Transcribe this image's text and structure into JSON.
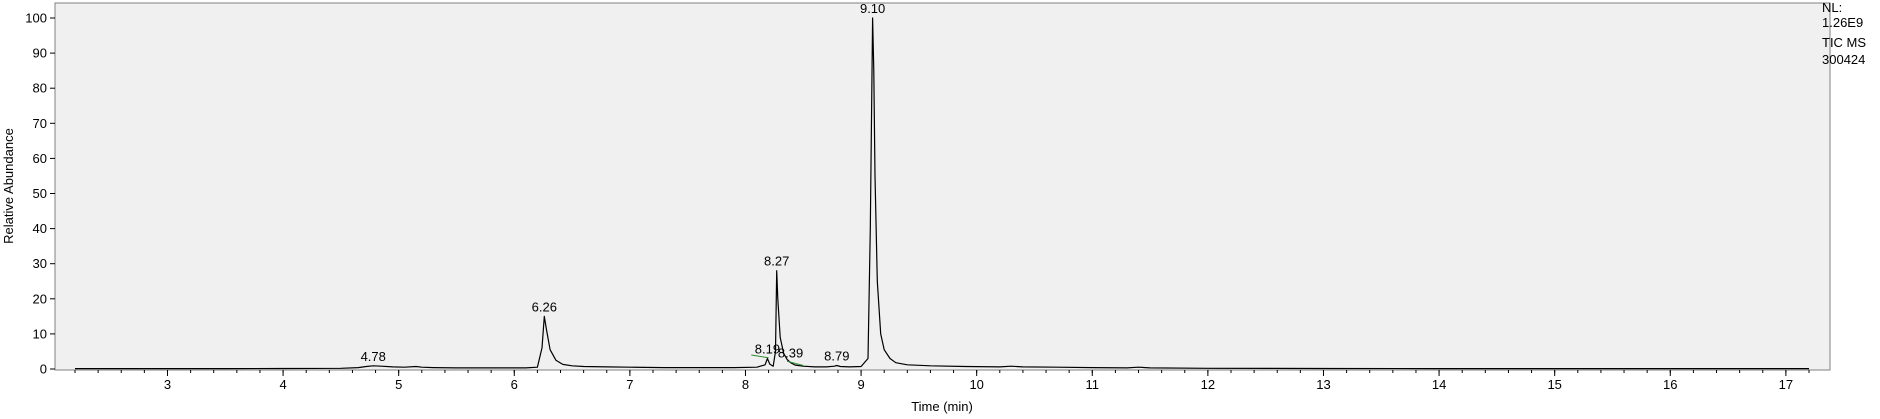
{
  "info": {
    "nl_label": "NL:",
    "nl_value": "1.26E9",
    "scan_filter": "TIC  MS",
    "sample_name": "300424"
  },
  "chart_data": {
    "type": "line",
    "xlabel": "Time (min)",
    "ylabel": "Relative Abundance",
    "xlim": [
      2.2,
      17.2
    ],
    "ylim": [
      0,
      100
    ],
    "x_ticks": [
      3,
      4,
      5,
      6,
      7,
      8,
      9,
      10,
      11,
      12,
      13,
      14,
      15,
      16,
      17
    ],
    "y_ticks": [
      0,
      10,
      20,
      30,
      40,
      50,
      60,
      70,
      80,
      90,
      100
    ],
    "grid": false,
    "background": "#f0f0f0",
    "line_color": "#000000",
    "marker_color": "#2e8b2e",
    "series": [
      {
        "x": [
          2.2,
          2.5,
          3.0,
          3.5,
          4.0,
          4.5,
          4.65,
          4.72,
          4.78,
          4.85,
          4.95,
          5.05,
          5.15,
          5.2,
          5.3,
          5.5,
          5.8,
          6.1,
          6.2,
          6.24,
          6.26,
          6.28,
          6.31,
          6.36,
          6.42,
          6.5,
          6.6,
          6.8,
          7.0,
          7.3,
          7.6,
          7.9,
          8.1,
          8.17,
          8.19,
          8.21,
          8.24,
          8.26,
          8.27,
          8.28,
          8.3,
          8.33,
          8.36,
          8.39,
          8.43,
          8.5,
          8.6,
          8.7,
          8.77,
          8.79,
          8.82,
          8.9,
          9.0,
          9.06,
          9.08,
          9.1,
          9.11,
          9.12,
          9.14,
          9.17,
          9.2,
          9.25,
          9.3,
          9.4,
          9.6,
          9.9,
          10.2,
          10.3,
          10.4,
          10.7,
          11.0,
          11.3,
          11.4,
          11.5,
          12.0,
          13.0,
          14.0,
          15.0,
          16.0,
          17.0,
          17.2
        ],
        "y": [
          0.1,
          0.1,
          0.1,
          0.1,
          0.15,
          0.2,
          0.4,
          0.7,
          0.9,
          0.8,
          0.6,
          0.5,
          0.7,
          0.5,
          0.4,
          0.3,
          0.3,
          0.3,
          0.5,
          6.0,
          15.0,
          11.0,
          5.5,
          2.5,
          1.3,
          0.9,
          0.7,
          0.6,
          0.5,
          0.4,
          0.4,
          0.4,
          0.5,
          1.2,
          3.0,
          1.4,
          0.8,
          5.0,
          28.0,
          20.0,
          9.0,
          4.5,
          2.7,
          1.8,
          1.1,
          0.8,
          0.6,
          0.6,
          0.8,
          1.0,
          0.7,
          0.6,
          0.7,
          3.0,
          40.0,
          100.0,
          85.0,
          55.0,
          25.0,
          10.0,
          5.5,
          3.0,
          1.8,
          1.2,
          0.9,
          0.7,
          0.6,
          0.8,
          0.6,
          0.5,
          0.4,
          0.3,
          0.5,
          0.3,
          0.2,
          0.15,
          0.1,
          0.1,
          0.1,
          0.1,
          0.1
        ]
      }
    ],
    "peak_labels": [
      {
        "text": "4.78",
        "x": 4.78,
        "y": 0.9
      },
      {
        "text": "6.26",
        "x": 6.26,
        "y": 15.0
      },
      {
        "text": "8.19",
        "x": 8.19,
        "y": 3.0
      },
      {
        "text": "8.27",
        "x": 8.27,
        "y": 28.0
      },
      {
        "text": "8.39",
        "x": 8.39,
        "y": 1.8
      },
      {
        "text": "8.79",
        "x": 8.79,
        "y": 1.0
      },
      {
        "text": "9.10",
        "x": 9.1,
        "y": 100.0
      }
    ],
    "integration_marks": [
      {
        "x_start": 8.05,
        "x_end": 8.2,
        "y_start": 4.0,
        "y_end": 3.2
      },
      {
        "x_start": 8.36,
        "x_end": 8.5,
        "y_start": 2.2,
        "y_end": 1.0
      }
    ]
  }
}
